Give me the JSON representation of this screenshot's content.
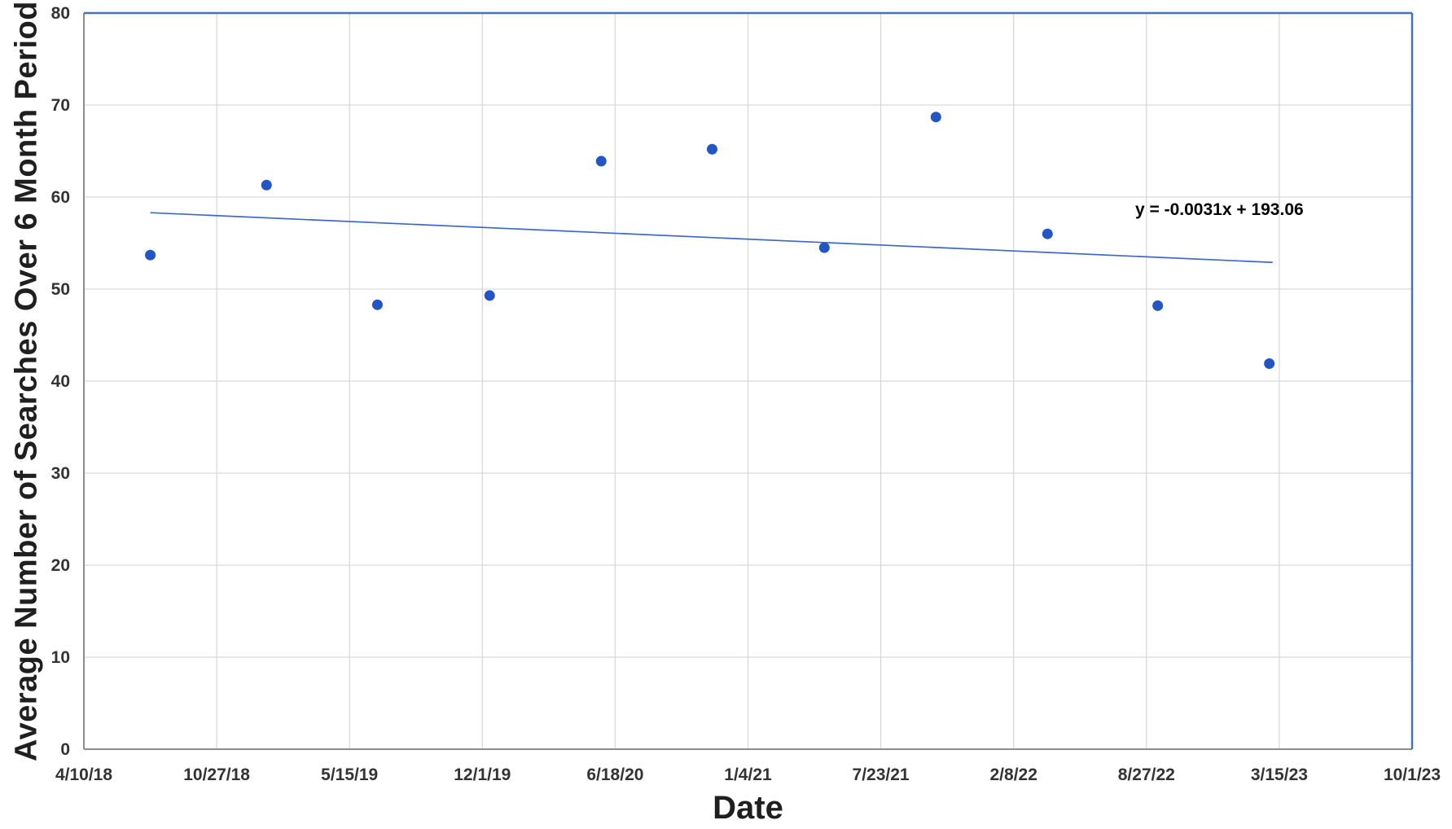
{
  "chart_data": {
    "type": "scatter",
    "title": "",
    "xlabel": "Date",
    "ylabel": "Average Number of Searches Over 6 Month Period",
    "x_ticks": [
      "4/10/18",
      "10/27/18",
      "5/15/19",
      "12/1/19",
      "6/18/20",
      "1/4/21",
      "7/23/21",
      "2/8/22",
      "8/27/22",
      "3/15/23",
      "10/1/23"
    ],
    "x_tick_interval_days": 200,
    "x_range_days": [
      0,
      2000
    ],
    "y_ticks": [
      "0",
      "10",
      "20",
      "30",
      "40",
      "50",
      "60",
      "70",
      "80"
    ],
    "ylim": [
      0,
      80
    ],
    "y_tick_step": 10,
    "grid": true,
    "legend_position": "none",
    "points": [
      {
        "date": "7/19/18",
        "x_days": 100,
        "y": 53.7
      },
      {
        "date": "1/10/19",
        "x_days": 275,
        "y": 61.3
      },
      {
        "date": "6/26/19",
        "x_days": 442,
        "y": 48.3
      },
      {
        "date": "12/12/19",
        "x_days": 611,
        "y": 49.3
      },
      {
        "date": "5/28/20",
        "x_days": 779,
        "y": 63.9
      },
      {
        "date": "11/11/20",
        "x_days": 946,
        "y": 65.2
      },
      {
        "date": "4/29/21",
        "x_days": 1115,
        "y": 54.5
      },
      {
        "date": "10/14/21",
        "x_days": 1283,
        "y": 68.7
      },
      {
        "date": "3/31/22",
        "x_days": 1451,
        "y": 56.0
      },
      {
        "date": "9/13/22",
        "x_days": 1617,
        "y": 48.2
      },
      {
        "date": "2/28/23",
        "x_days": 1785,
        "y": 41.9
      }
    ],
    "trendline": {
      "label": "y = -0.0031x + 193.06",
      "slope_per_day": -0.0031,
      "intercept": 193.06,
      "x1_days": 100,
      "y1": 58.3,
      "x2_days": 1790,
      "y2": 52.9
    }
  },
  "colors": {
    "point": "#2356c5",
    "trendline": "#3c68cc",
    "border_blue": "#4472c4",
    "axis_line": "#8c8c8c",
    "gridline": "#d9d9d9",
    "tick_text": "#333333",
    "title_text": "#1f1f1f",
    "equation_text": "#000000"
  }
}
